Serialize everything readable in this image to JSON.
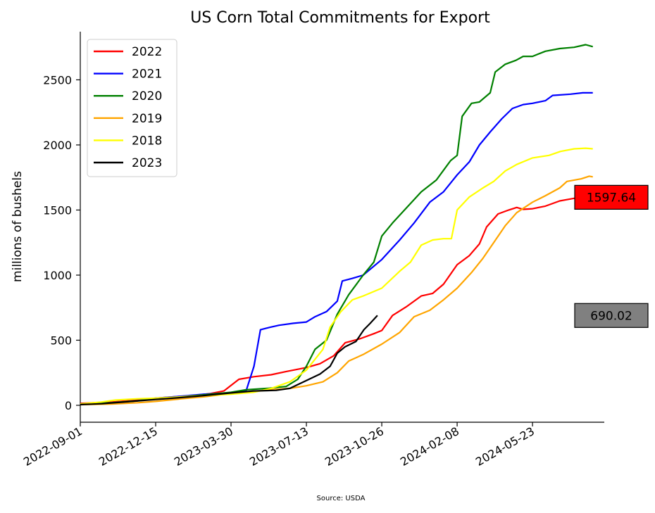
{
  "chart_data": {
    "type": "line",
    "title": "US Corn Total Commitments for Export",
    "ylabel": "millions of bushels",
    "xlabel": "",
    "source": "Source: USDA",
    "x_range": [
      "2022-09-01",
      "2024-08-31"
    ],
    "ylim": [
      -130,
      2870
    ],
    "y_ticks": [
      0,
      500,
      1000,
      1500,
      2000,
      2500
    ],
    "x_ticks": [
      "2022-09-01",
      "2022-12-15",
      "2023-03-30",
      "2023-07-13",
      "2023-10-26",
      "2024-02-08",
      "2024-05-23"
    ],
    "grid": false,
    "legend": "top-left",
    "series": [
      {
        "name": "2022",
        "color": "#ff0000",
        "points": [
          [
            "2022-09-01",
            15
          ],
          [
            "2022-10-15",
            25
          ],
          [
            "2022-11-20",
            40
          ],
          [
            "2022-12-15",
            55
          ],
          [
            "2023-01-10",
            65
          ],
          [
            "2023-02-05",
            75
          ],
          [
            "2023-03-01",
            90
          ],
          [
            "2023-03-20",
            110
          ],
          [
            "2023-04-10",
            200
          ],
          [
            "2023-05-01",
            220
          ],
          [
            "2023-05-25",
            235
          ],
          [
            "2023-06-15",
            260
          ],
          [
            "2023-07-13",
            290
          ],
          [
            "2023-08-01",
            320
          ],
          [
            "2023-08-20",
            380
          ],
          [
            "2023-09-05",
            480
          ],
          [
            "2023-09-25",
            510
          ],
          [
            "2023-10-15",
            550
          ],
          [
            "2023-10-26",
            575
          ],
          [
            "2023-11-10",
            690
          ],
          [
            "2023-11-30",
            760
          ],
          [
            "2023-12-20",
            840
          ],
          [
            "2024-01-05",
            860
          ],
          [
            "2024-01-20",
            930
          ],
          [
            "2024-02-08",
            1080
          ],
          [
            "2024-02-25",
            1150
          ],
          [
            "2024-03-10",
            1240
          ],
          [
            "2024-03-20",
            1370
          ],
          [
            "2024-04-05",
            1470
          ],
          [
            "2024-04-20",
            1500
          ],
          [
            "2024-05-01",
            1520
          ],
          [
            "2024-05-10",
            1505
          ],
          [
            "2024-05-23",
            1510
          ],
          [
            "2024-06-10",
            1530
          ],
          [
            "2024-06-30",
            1570
          ],
          [
            "2024-07-20",
            1590
          ],
          [
            "2024-08-05",
            1595
          ],
          [
            "2024-08-15",
            1598
          ]
        ]
      },
      {
        "name": "2021",
        "color": "#0000ff",
        "points": [
          [
            "2022-09-01",
            10
          ],
          [
            "2022-10-15",
            20
          ],
          [
            "2022-11-20",
            35
          ],
          [
            "2022-12-15",
            55
          ],
          [
            "2023-01-20",
            70
          ],
          [
            "2023-02-20",
            85
          ],
          [
            "2023-03-30",
            95
          ],
          [
            "2023-04-20",
            110
          ],
          [
            "2023-05-01",
            300
          ],
          [
            "2023-05-10",
            580
          ],
          [
            "2023-05-20",
            595
          ],
          [
            "2023-06-05",
            615
          ],
          [
            "2023-06-25",
            630
          ],
          [
            "2023-07-13",
            640
          ],
          [
            "2023-07-25",
            680
          ],
          [
            "2023-08-10",
            720
          ],
          [
            "2023-08-25",
            800
          ],
          [
            "2023-09-01",
            955
          ],
          [
            "2023-09-15",
            975
          ],
          [
            "2023-09-30",
            1000
          ],
          [
            "2023-10-26",
            1120
          ],
          [
            "2023-11-20",
            1270
          ],
          [
            "2023-12-10",
            1400
          ],
          [
            "2024-01-01",
            1560
          ],
          [
            "2024-01-20",
            1640
          ],
          [
            "2024-02-08",
            1770
          ],
          [
            "2024-02-25",
            1870
          ],
          [
            "2024-03-10",
            2000
          ],
          [
            "2024-03-25",
            2100
          ],
          [
            "2024-04-10",
            2200
          ],
          [
            "2024-04-25",
            2280
          ],
          [
            "2024-05-10",
            2310
          ],
          [
            "2024-05-23",
            2320
          ],
          [
            "2024-06-10",
            2340
          ],
          [
            "2024-06-20",
            2380
          ],
          [
            "2024-07-15",
            2390
          ],
          [
            "2024-08-01",
            2400
          ],
          [
            "2024-08-15",
            2400
          ]
        ]
      },
      {
        "name": "2020",
        "color": "#008000",
        "points": [
          [
            "2022-09-01",
            10
          ],
          [
            "2022-10-15",
            20
          ],
          [
            "2022-11-20",
            35
          ],
          [
            "2022-12-15",
            50
          ],
          [
            "2023-01-20",
            65
          ],
          [
            "2023-02-20",
            80
          ],
          [
            "2023-03-30",
            100
          ],
          [
            "2023-04-20",
            120
          ],
          [
            "2023-05-20",
            130
          ],
          [
            "2023-06-15",
            145
          ],
          [
            "2023-07-01",
            200
          ],
          [
            "2023-07-13",
            300
          ],
          [
            "2023-07-25",
            430
          ],
          [
            "2023-08-10",
            500
          ],
          [
            "2023-08-25",
            700
          ],
          [
            "2023-09-10",
            850
          ],
          [
            "2023-09-30",
            1000
          ],
          [
            "2023-10-15",
            1100
          ],
          [
            "2023-10-26",
            1300
          ],
          [
            "2023-11-10",
            1400
          ],
          [
            "2023-11-30",
            1520
          ],
          [
            "2023-12-20",
            1640
          ],
          [
            "2024-01-10",
            1730
          ],
          [
            "2024-01-30",
            1880
          ],
          [
            "2024-02-08",
            1920
          ],
          [
            "2024-02-15",
            2220
          ],
          [
            "2024-02-28",
            2320
          ],
          [
            "2024-03-10",
            2330
          ],
          [
            "2024-03-25",
            2400
          ],
          [
            "2024-04-01",
            2560
          ],
          [
            "2024-04-15",
            2620
          ],
          [
            "2024-04-30",
            2650
          ],
          [
            "2024-05-10",
            2680
          ],
          [
            "2024-05-23",
            2680
          ],
          [
            "2024-06-10",
            2720
          ],
          [
            "2024-06-30",
            2740
          ],
          [
            "2024-07-20",
            2750
          ],
          [
            "2024-08-05",
            2770
          ],
          [
            "2024-08-15",
            2755
          ]
        ]
      },
      {
        "name": "2019",
        "color": "#ffa500",
        "points": [
          [
            "2022-09-01",
            5
          ],
          [
            "2022-10-15",
            10
          ],
          [
            "2022-11-20",
            20
          ],
          [
            "2022-12-15",
            30
          ],
          [
            "2023-01-20",
            50
          ],
          [
            "2023-02-20",
            65
          ],
          [
            "2023-03-30",
            90
          ],
          [
            "2023-04-30",
            105
          ],
          [
            "2023-05-25",
            120
          ],
          [
            "2023-06-20",
            130
          ],
          [
            "2023-07-13",
            150
          ],
          [
            "2023-08-05",
            180
          ],
          [
            "2023-08-25",
            250
          ],
          [
            "2023-09-10",
            340
          ],
          [
            "2023-09-30",
            390
          ],
          [
            "2023-10-26",
            470
          ],
          [
            "2023-11-20",
            560
          ],
          [
            "2023-12-10",
            680
          ],
          [
            "2024-01-01",
            730
          ],
          [
            "2024-01-20",
            810
          ],
          [
            "2024-02-08",
            900
          ],
          [
            "2024-02-28",
            1020
          ],
          [
            "2024-03-15",
            1130
          ],
          [
            "2024-03-30",
            1250
          ],
          [
            "2024-04-15",
            1380
          ],
          [
            "2024-05-01",
            1480
          ],
          [
            "2024-05-23",
            1560
          ],
          [
            "2024-06-10",
            1610
          ],
          [
            "2024-06-30",
            1670
          ],
          [
            "2024-07-10",
            1720
          ],
          [
            "2024-07-30",
            1740
          ],
          [
            "2024-08-10",
            1760
          ],
          [
            "2024-08-15",
            1755
          ]
        ]
      },
      {
        "name": "2018",
        "color": "#ffff00",
        "points": [
          [
            "2022-09-01",
            10
          ],
          [
            "2022-09-30",
            25
          ],
          [
            "2022-10-20",
            40
          ],
          [
            "2022-11-20",
            50
          ],
          [
            "2022-12-15",
            55
          ],
          [
            "2023-01-20",
            65
          ],
          [
            "2023-02-20",
            75
          ],
          [
            "2023-03-30",
            85
          ],
          [
            "2023-04-30",
            100
          ],
          [
            "2023-05-25",
            130
          ],
          [
            "2023-06-20",
            180
          ],
          [
            "2023-07-13",
            270
          ],
          [
            "2023-08-05",
            430
          ],
          [
            "2023-08-15",
            600
          ],
          [
            "2023-08-30",
            720
          ],
          [
            "2023-09-15",
            810
          ],
          [
            "2023-09-30",
            840
          ],
          [
            "2023-10-26",
            900
          ],
          [
            "2023-11-20",
            1030
          ],
          [
            "2023-12-05",
            1100
          ],
          [
            "2023-12-20",
            1230
          ],
          [
            "2024-01-05",
            1270
          ],
          [
            "2024-01-20",
            1280
          ],
          [
            "2024-01-31",
            1280
          ],
          [
            "2024-02-08",
            1500
          ],
          [
            "2024-02-25",
            1600
          ],
          [
            "2024-03-15",
            1670
          ],
          [
            "2024-03-30",
            1720
          ],
          [
            "2024-04-15",
            1800
          ],
          [
            "2024-05-01",
            1850
          ],
          [
            "2024-05-23",
            1900
          ],
          [
            "2024-06-15",
            1920
          ],
          [
            "2024-07-01",
            1950
          ],
          [
            "2024-07-20",
            1970
          ],
          [
            "2024-08-05",
            1975
          ],
          [
            "2024-08-15",
            1970
          ]
        ]
      },
      {
        "name": "2023",
        "color": "#000000",
        "points": [
          [
            "2022-09-01",
            5
          ],
          [
            "2022-10-01",
            12
          ],
          [
            "2022-11-01",
            25
          ],
          [
            "2022-12-15",
            45
          ],
          [
            "2023-01-20",
            60
          ],
          [
            "2023-02-20",
            75
          ],
          [
            "2023-03-30",
            95
          ],
          [
            "2023-04-30",
            110
          ],
          [
            "2023-06-01",
            115
          ],
          [
            "2023-06-20",
            130
          ],
          [
            "2023-07-13",
            190
          ],
          [
            "2023-08-01",
            240
          ],
          [
            "2023-08-15",
            300
          ],
          [
            "2023-08-25",
            400
          ],
          [
            "2023-09-05",
            450
          ],
          [
            "2023-09-20",
            490
          ],
          [
            "2023-10-01",
            580
          ],
          [
            "2023-10-10",
            630
          ],
          [
            "2023-10-20",
            690
          ]
        ]
      }
    ],
    "annotations": [
      {
        "text": "1597.64",
        "y": 1597.64,
        "bg": "#ff0000"
      },
      {
        "text": "690.02",
        "y": 690.02,
        "bg": "#808080"
      }
    ]
  }
}
